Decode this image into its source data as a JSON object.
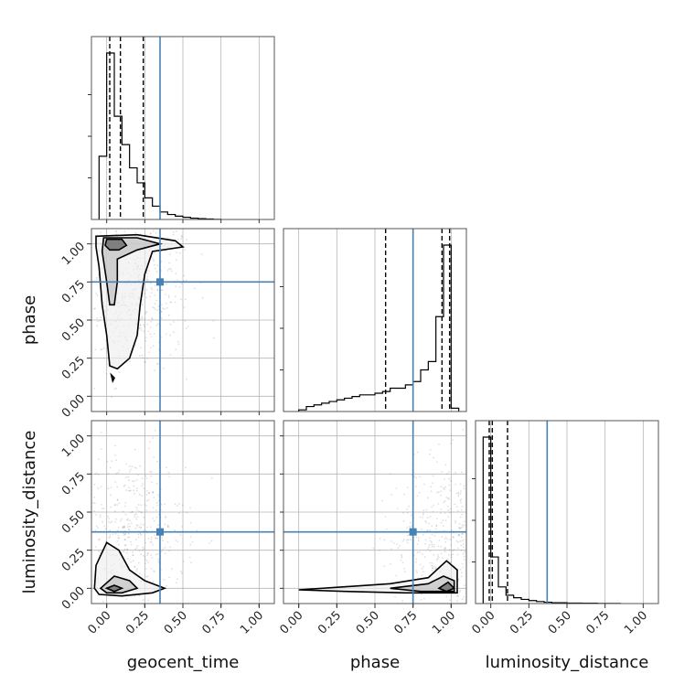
{
  "chart_data": {
    "type": "corner",
    "parameters": [
      "geocent_time",
      "phase",
      "luminosity_distance"
    ],
    "axis_labels": [
      "geocent_time",
      "phase",
      "luminosity_distance"
    ],
    "tick_labels": [
      "0.00",
      "0.25",
      "0.50",
      "0.75",
      "1.00"
    ],
    "ticks": [
      0,
      0.25,
      0.5,
      0.75,
      1.0
    ],
    "ranges": [
      [
        -0.1,
        1.1
      ],
      [
        -0.1,
        1.1
      ],
      [
        -0.1,
        1.1
      ]
    ],
    "grid": true,
    "truths": [
      0.35,
      0.75,
      0.37
    ],
    "truth_color": "#4682b4",
    "hist_color": "#000000",
    "scatter_color": "#7f7f7f",
    "histograms": [
      {
        "parameter": "geocent_time",
        "bin_edges": [
          -0.05,
          0.0,
          0.05,
          0.1,
          0.15,
          0.2,
          0.25,
          0.3,
          0.35,
          0.4,
          0.45,
          0.5,
          0.55,
          0.6,
          0.65,
          0.7,
          0.75
        ],
        "density": [
          0.38,
          1.0,
          0.62,
          0.45,
          0.31,
          0.22,
          0.13,
          0.08,
          0.045,
          0.03,
          0.02,
          0.013,
          0.008,
          0.005,
          0.003,
          0.001
        ],
        "quantiles": [
          0.02,
          0.09,
          0.24
        ]
      },
      {
        "parameter": "phase",
        "bin_edges": [
          0.0,
          0.05,
          0.1,
          0.15,
          0.2,
          0.25,
          0.3,
          0.35,
          0.4,
          0.45,
          0.5,
          0.55,
          0.6,
          0.65,
          0.7,
          0.75,
          0.8,
          0.85,
          0.9,
          0.95,
          1.0,
          1.05
        ],
        "density": [
          0.01,
          0.03,
          0.04,
          0.05,
          0.06,
          0.07,
          0.08,
          0.09,
          0.1,
          0.1,
          0.11,
          0.12,
          0.14,
          0.14,
          0.16,
          0.18,
          0.25,
          0.3,
          0.57,
          1.0,
          0.02
        ],
        "quantiles": [
          0.57,
          0.94,
          0.99
        ]
      },
      {
        "parameter": "luminosity_distance",
        "bin_edges": [
          -0.05,
          0.0,
          0.05,
          0.1,
          0.15,
          0.2,
          0.25,
          0.3,
          0.35,
          0.4,
          0.5,
          0.6,
          0.7,
          0.85
        ],
        "density": [
          1.0,
          0.28,
          0.1,
          0.05,
          0.035,
          0.025,
          0.018,
          0.012,
          0.008,
          0.005,
          0.003,
          0.002,
          0.001
        ],
        "quantiles": [
          -0.01,
          0.01,
          0.11
        ]
      }
    ],
    "joint_panels": [
      {
        "x": "geocent_time",
        "y": "phase",
        "points_center": [
          0.2,
          0.7
        ],
        "contours": [
          [
            [
              -0.07,
              1.05
            ],
            [
              0.2,
              1.06
            ],
            [
              0.45,
              1.02
            ],
            [
              0.5,
              0.98
            ],
            [
              0.3,
              0.95
            ],
            [
              0.25,
              0.8
            ],
            [
              0.22,
              0.6
            ],
            [
              0.2,
              0.4
            ],
            [
              0.15,
              0.25
            ],
            [
              0.07,
              0.18
            ],
            [
              0.02,
              0.2
            ],
            [
              0.0,
              0.4
            ],
            [
              -0.03,
              0.6
            ],
            [
              -0.05,
              0.85
            ],
            [
              -0.07,
              0.98
            ],
            [
              -0.07,
              1.05
            ]
          ],
          [
            [
              -0.02,
              1.04
            ],
            [
              0.2,
              1.04
            ],
            [
              0.35,
              1.0
            ],
            [
              0.2,
              0.96
            ],
            [
              0.07,
              0.9
            ],
            [
              0.07,
              0.75
            ],
            [
              0.05,
              0.6
            ],
            [
              0.02,
              0.6
            ],
            [
              0.0,
              0.75
            ],
            [
              -0.03,
              0.95
            ],
            [
              -0.02,
              1.04
            ]
          ],
          [
            [
              0.0,
              1.03
            ],
            [
              0.1,
              1.03
            ],
            [
              0.13,
              0.99
            ],
            [
              0.08,
              0.96
            ],
            [
              0.02,
              0.96
            ],
            [
              -0.01,
              0.99
            ],
            [
              0.0,
              1.03
            ]
          ],
          [
            [
              0.03,
              0.14
            ],
            [
              0.05,
              0.12
            ],
            [
              0.04,
              0.1
            ],
            [
              0.03,
              0.14
            ]
          ]
        ]
      },
      {
        "x": "geocent_time",
        "y": "luminosity_distance",
        "points_center": [
          0.15,
          0.35
        ],
        "contours": [
          [
            [
              -0.08,
              0.0
            ],
            [
              -0.07,
              0.15
            ],
            [
              0.0,
              0.3
            ],
            [
              0.08,
              0.25
            ],
            [
              0.15,
              0.12
            ],
            [
              0.25,
              0.05
            ],
            [
              0.38,
              0.0
            ],
            [
              0.3,
              -0.03
            ],
            [
              0.1,
              -0.05
            ],
            [
              -0.05,
              -0.04
            ],
            [
              -0.08,
              0.0
            ]
          ],
          [
            [
              -0.04,
              0.0
            ],
            [
              0.05,
              0.08
            ],
            [
              0.15,
              0.05
            ],
            [
              0.2,
              0.0
            ],
            [
              0.1,
              -0.03
            ],
            [
              0.0,
              -0.03
            ],
            [
              -0.04,
              0.0
            ]
          ],
          [
            [
              0.0,
              0.0
            ],
            [
              0.05,
              0.02
            ],
            [
              0.1,
              0.0
            ],
            [
              0.05,
              -0.02
            ],
            [
              0.0,
              0.0
            ]
          ]
        ]
      },
      {
        "x": "phase",
        "y": "luminosity_distance",
        "points_center": [
          0.97,
          0.3
        ],
        "contours": [
          [
            [
              0.0,
              -0.01
            ],
            [
              0.3,
              0.01
            ],
            [
              0.6,
              0.03
            ],
            [
              0.85,
              0.07
            ],
            [
              0.97,
              0.18
            ],
            [
              1.04,
              0.12
            ],
            [
              1.04,
              -0.03
            ],
            [
              0.7,
              -0.03
            ],
            [
              0.3,
              -0.02
            ],
            [
              0.0,
              -0.01
            ]
          ],
          [
            [
              0.6,
              0.0
            ],
            [
              0.85,
              0.03
            ],
            [
              0.95,
              0.08
            ],
            [
              1.02,
              0.05
            ],
            [
              1.02,
              -0.02
            ],
            [
              0.8,
              -0.02
            ],
            [
              0.6,
              0.0
            ]
          ],
          [
            [
              0.92,
              0.0
            ],
            [
              0.98,
              0.04
            ],
            [
              1.02,
              0.0
            ],
            [
              0.97,
              -0.02
            ],
            [
              0.92,
              0.0
            ]
          ]
        ]
      }
    ]
  }
}
